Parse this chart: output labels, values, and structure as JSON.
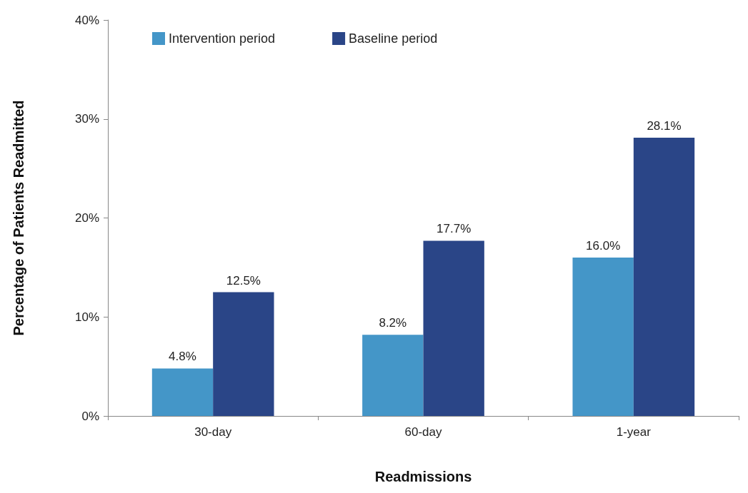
{
  "chart_data": {
    "type": "bar",
    "xlabel": "Readmissions",
    "ylabel": "Percentage of Patients Readmitted",
    "categories": [
      "30-day",
      "60-day",
      "1-year"
    ],
    "series": [
      {
        "name": "Intervention period",
        "color": "#4496c8",
        "values": [
          4.8,
          8.2,
          16.0
        ],
        "value_labels": [
          "4.8%",
          "8.2%",
          "16.0%"
        ]
      },
      {
        "name": "Baseline period",
        "color": "#2a4587",
        "values": [
          12.5,
          17.7,
          28.1
        ],
        "value_labels": [
          "12.5%",
          "17.7%",
          "28.1%"
        ]
      }
    ],
    "ylim": [
      0,
      40
    ],
    "yticks": [
      {
        "value": 0,
        "label": "0%"
      },
      {
        "value": 10,
        "label": "10%"
      },
      {
        "value": 20,
        "label": "20%"
      },
      {
        "value": 30,
        "label": "30%"
      },
      {
        "value": 40,
        "label": "40%"
      }
    ],
    "grid": false,
    "legend": "top left"
  }
}
